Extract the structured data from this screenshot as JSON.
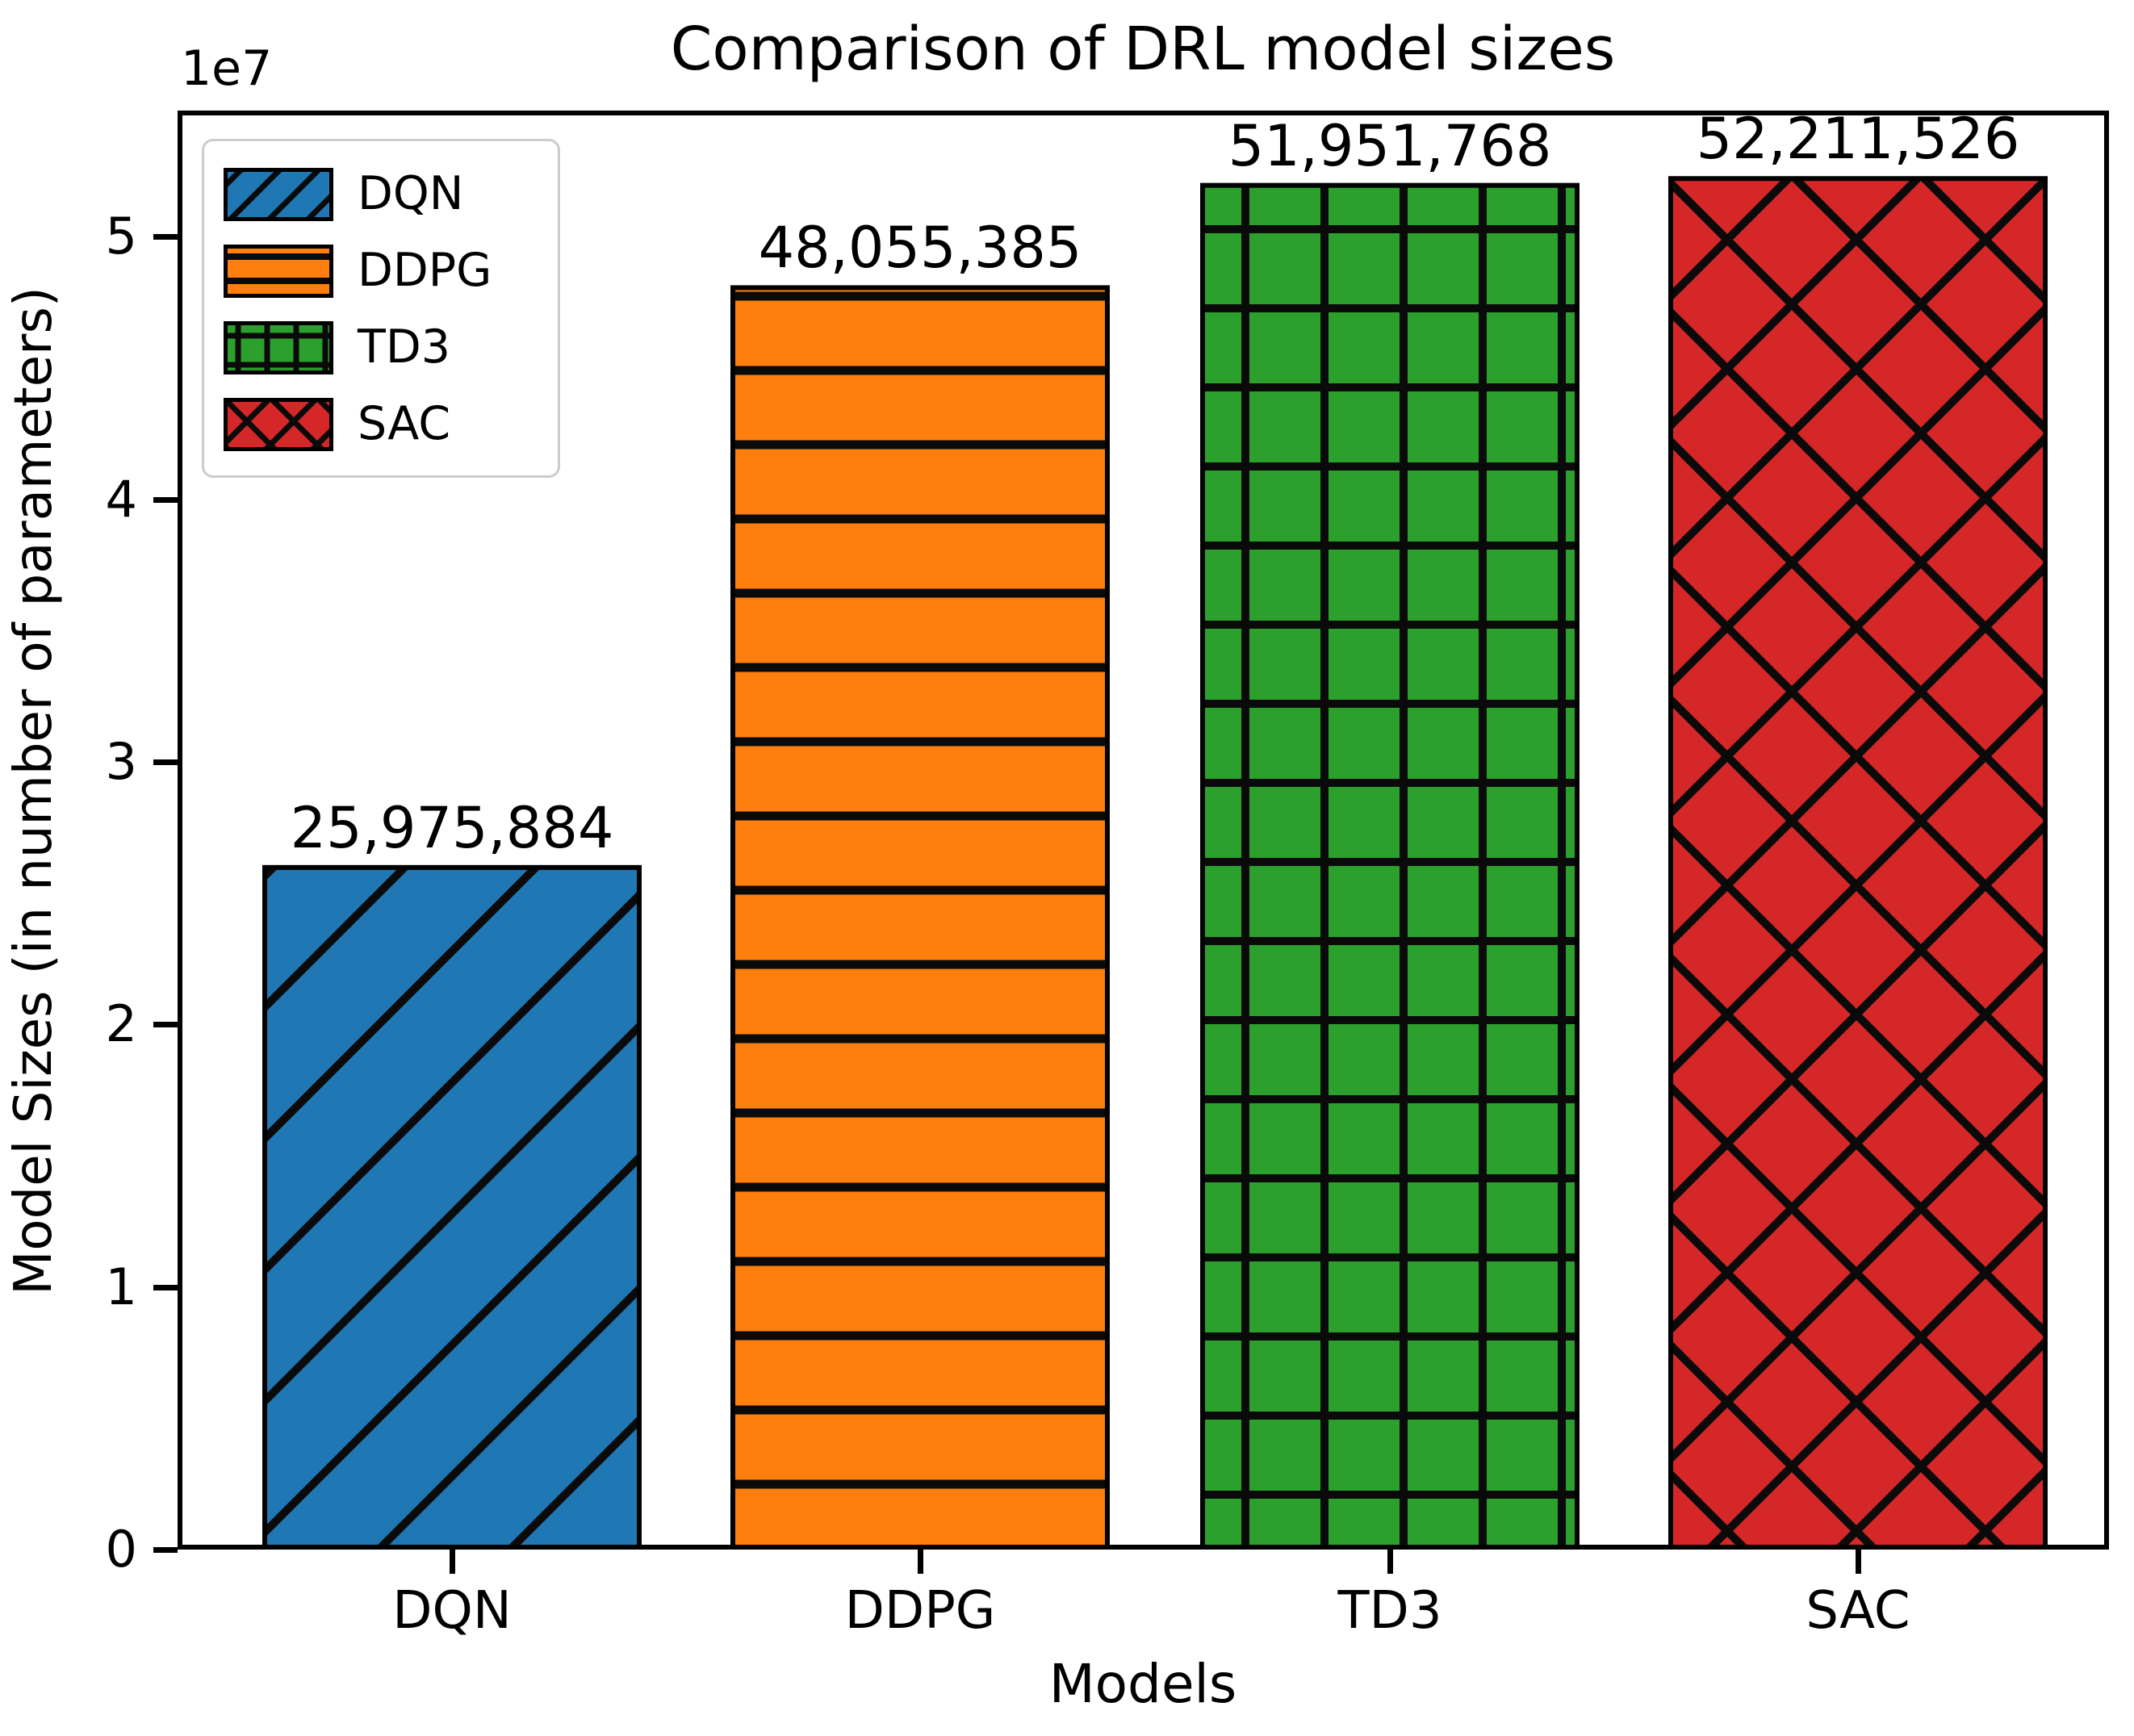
{
  "figure": {
    "title": "Comparison of DRL model sizes",
    "offset_text": "1e7",
    "ylabel": "Model Sizes (in number of parameters)",
    "xlabel": "Models"
  },
  "chart_data": {
    "type": "bar",
    "title": "Comparison of DRL model sizes",
    "xlabel": "Models",
    "ylabel": "Model Sizes (in number of parameters)",
    "y_offset_text": "1e7",
    "categories": [
      "DQN",
      "DDPG",
      "TD3",
      "SAC"
    ],
    "values": [
      25975884,
      48055385,
      51951768,
      52211526
    ],
    "value_labels": [
      "25,975,884",
      "48,055,385",
      "51,951,768",
      "52,211,526"
    ],
    "bar_colors": [
      "#1f77b4",
      "#ff7f0e",
      "#2ca02c",
      "#d62728"
    ],
    "bar_edge_color": "#000000",
    "hatches": [
      "/",
      "-",
      "+",
      "x"
    ],
    "legend": {
      "position": "upper left",
      "entries": [
        "DQN",
        "DDPG",
        "TD3",
        "SAC"
      ]
    },
    "ylim": [
      0,
      54800000
    ],
    "ytick_labels": [
      "0",
      "1",
      "2",
      "3",
      "4",
      "5"
    ],
    "ytick_values": [
      0,
      10000000,
      20000000,
      30000000,
      40000000,
      50000000
    ],
    "grid": false
  }
}
